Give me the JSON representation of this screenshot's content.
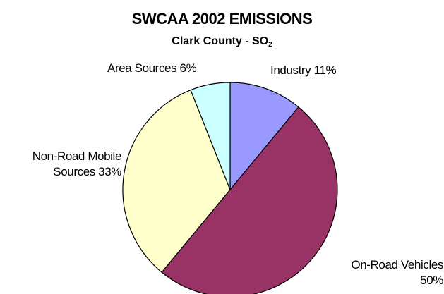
{
  "chart_data": {
    "type": "pie",
    "title": "SWCAA 2002 EMISSIONS",
    "subtitle_text": "Clark County - SO",
    "subtitle_subscript": "2",
    "start_angle_deg": 0,
    "direction": "clockwise",
    "slices": [
      {
        "label": "Industry",
        "value": 11,
        "color": "#9999ff"
      },
      {
        "label": "On-Road Vehicles",
        "value": 50,
        "color": "#993366"
      },
      {
        "label": "Non-Road Mobile Sources",
        "value": 33,
        "color": "#ffffcc"
      },
      {
        "label": "Area Sources",
        "value": 6,
        "color": "#ccffff"
      }
    ],
    "labels": {
      "industry": "Industry 11%",
      "onroad_1": "On-Road Vehicles",
      "onroad_2": "50%",
      "nonroad_1": "Non-Road Mobile",
      "nonroad_2": "Sources 33%",
      "area": "Area Sources 6%"
    }
  }
}
